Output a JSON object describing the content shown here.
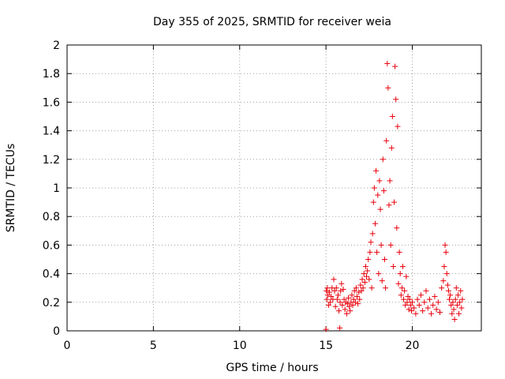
{
  "chart_data": {
    "type": "scatter",
    "title": "Day 355 of 2025, SRMTID for receiver weia",
    "xlabel": "GPS time / hours",
    "ylabel": "SRMTID / TECUs",
    "xlim": [
      0,
      24
    ],
    "ylim": [
      0,
      2
    ],
    "xticks": [
      0,
      5,
      10,
      15,
      20
    ],
    "xtick_labels": [
      "0",
      "5",
      "10",
      "15",
      "20"
    ],
    "yticks": [
      0,
      0.2,
      0.4,
      0.6,
      0.8,
      1,
      1.2,
      1.4,
      1.6,
      1.8,
      2
    ],
    "ytick_labels": [
      "0",
      "0.2",
      "0.4",
      "0.6",
      "0.8",
      "1",
      "1.2",
      "1.4",
      "1.6",
      "1.8",
      "2"
    ],
    "grid": true,
    "marker": "plus",
    "color": "#e8000b",
    "series": [
      {
        "name": "SRMTID",
        "x": [
          15.0,
          15.02,
          15.05,
          15.08,
          15.1,
          15.15,
          15.2,
          15.25,
          15.3,
          15.35,
          15.4,
          15.45,
          15.5,
          15.55,
          15.6,
          15.65,
          15.7,
          15.75,
          15.8,
          15.82,
          15.85,
          15.9,
          15.95,
          16.0,
          16.05,
          16.1,
          16.15,
          16.2,
          16.25,
          16.3,
          16.35,
          16.4,
          16.45,
          16.5,
          16.55,
          16.6,
          16.65,
          16.7,
          16.75,
          16.8,
          16.85,
          16.9,
          16.95,
          17.0,
          17.05,
          17.1,
          17.15,
          17.2,
          17.25,
          17.3,
          17.35,
          17.4,
          17.45,
          17.5,
          17.55,
          17.6,
          17.65,
          17.7,
          17.75,
          17.8,
          17.85,
          17.9,
          17.95,
          18.0,
          18.05,
          18.1,
          18.15,
          18.2,
          18.25,
          18.3,
          18.35,
          18.4,
          18.45,
          18.5,
          18.55,
          18.6,
          18.65,
          18.7,
          18.75,
          18.8,
          18.85,
          18.9,
          18.95,
          19.0,
          19.05,
          19.1,
          19.15,
          19.2,
          19.25,
          19.3,
          19.35,
          19.4,
          19.45,
          19.5,
          19.55,
          19.6,
          19.65,
          19.7,
          19.75,
          19.8,
          19.85,
          19.9,
          19.95,
          20.0,
          20.1,
          20.2,
          20.3,
          20.4,
          20.5,
          20.6,
          20.7,
          20.8,
          20.9,
          21.0,
          21.1,
          21.2,
          21.3,
          21.4,
          21.5,
          21.6,
          21.7,
          21.8,
          21.85,
          21.9,
          21.95,
          22.0,
          22.05,
          22.1,
          22.15,
          22.2,
          22.25,
          22.3,
          22.35,
          22.4,
          22.45,
          22.5,
          22.55,
          22.6,
          22.65,
          22.7,
          22.75,
          22.8,
          22.85,
          22.9
        ],
        "y": [
          0.01,
          0.28,
          0.22,
          0.3,
          0.25,
          0.18,
          0.27,
          0.2,
          0.24,
          0.3,
          0.22,
          0.36,
          0.28,
          0.17,
          0.3,
          0.22,
          0.25,
          0.14,
          0.02,
          0.2,
          0.28,
          0.33,
          0.18,
          0.29,
          0.22,
          0.15,
          0.2,
          0.12,
          0.19,
          0.23,
          0.17,
          0.14,
          0.2,
          0.25,
          0.18,
          0.22,
          0.28,
          0.2,
          0.3,
          0.24,
          0.19,
          0.27,
          0.22,
          0.32,
          0.28,
          0.36,
          0.3,
          0.4,
          0.34,
          0.45,
          0.38,
          0.42,
          0.5,
          0.36,
          0.55,
          0.62,
          0.3,
          0.68,
          0.9,
          1.0,
          0.75,
          1.12,
          0.55,
          0.95,
          0.4,
          1.05,
          0.85,
          0.6,
          0.35,
          1.2,
          0.98,
          0.5,
          0.3,
          1.33,
          1.87,
          1.7,
          0.88,
          1.05,
          0.6,
          1.28,
          1.5,
          0.45,
          0.9,
          1.85,
          1.62,
          0.72,
          1.43,
          0.33,
          0.55,
          0.4,
          0.25,
          0.3,
          0.45,
          0.22,
          0.28,
          0.18,
          0.38,
          0.2,
          0.24,
          0.15,
          0.22,
          0.18,
          0.14,
          0.2,
          0.16,
          0.12,
          0.22,
          0.18,
          0.25,
          0.14,
          0.2,
          0.28,
          0.16,
          0.22,
          0.12,
          0.18,
          0.24,
          0.15,
          0.2,
          0.13,
          0.3,
          0.35,
          0.45,
          0.6,
          0.55,
          0.4,
          0.32,
          0.28,
          0.22,
          0.25,
          0.18,
          0.12,
          0.2,
          0.15,
          0.08,
          0.22,
          0.3,
          0.18,
          0.25,
          0.12,
          0.2,
          0.28,
          0.16,
          0.22
        ]
      }
    ]
  }
}
